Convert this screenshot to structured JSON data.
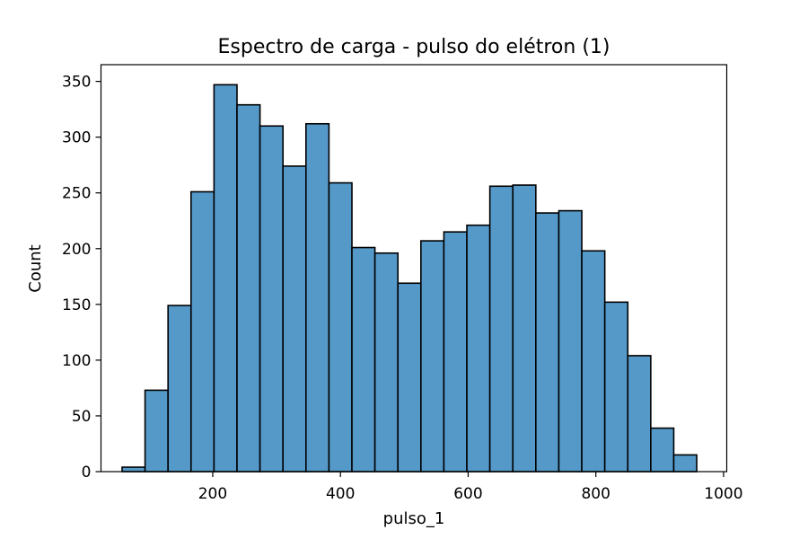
{
  "chart_data": {
    "type": "bar",
    "title": "Espectro de carga - pulso do elétron (1)",
    "xlabel": "pulso_1",
    "ylabel": "Count",
    "xlim": [
      25,
      1005
    ],
    "ylim": [
      0,
      365
    ],
    "xticks": [
      200,
      400,
      600,
      800,
      1000
    ],
    "yticks": [
      0,
      50,
      100,
      150,
      200,
      250,
      300,
      350
    ],
    "bin_edges": [
      58,
      94,
      130,
      166,
      202,
      238,
      274,
      310,
      346,
      382,
      418,
      454,
      490,
      526,
      562,
      598,
      634,
      670,
      706,
      742,
      778,
      814,
      850,
      886,
      922,
      958
    ],
    "values": [
      4,
      73,
      149,
      251,
      347,
      329,
      310,
      274,
      312,
      259,
      201,
      196,
      169,
      207,
      215,
      221,
      256,
      257,
      232,
      234,
      198,
      152,
      104,
      39,
      15
    ],
    "colors": {
      "bar_fill": "#5599c9",
      "bar_edge": "#000000"
    },
    "grid": false
  }
}
